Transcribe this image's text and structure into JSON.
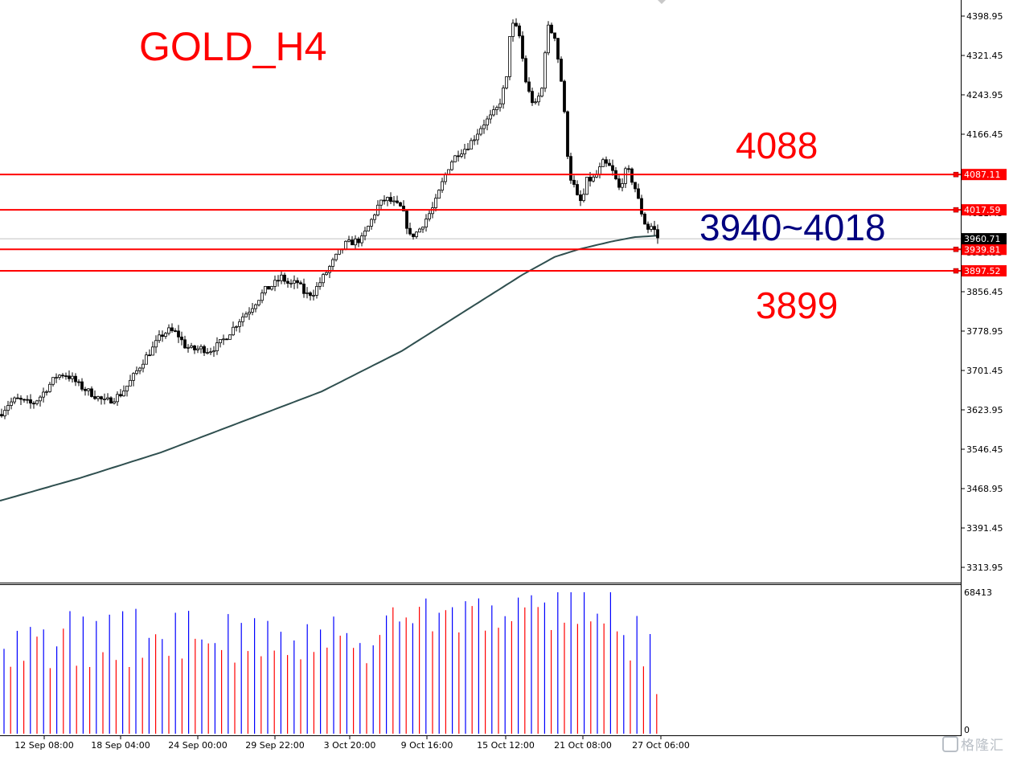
{
  "chart_data": {
    "type": "candlestick",
    "title": "GOLD_H4",
    "price_axis": {
      "ticks": [
        "4398.95",
        "4321.45",
        "4243.95",
        "4166.45",
        "4088.95",
        "4011.45",
        "3933.95",
        "3856.45",
        "3778.95",
        "3701.45",
        "3623.95",
        "3546.45",
        "3468.95",
        "3391.45",
        "3313.95"
      ],
      "range": [
        3300,
        4420
      ]
    },
    "time_axis": {
      "ticks": [
        "12 Sep 08:00",
        "18 Sep 04:00",
        "24 Sep 00:00",
        "29 Sep 22:00",
        "3 Oct 20:00",
        "9 Oct 16:00",
        "15 Oct 12:00",
        "21 Oct 08:00",
        "27 Oct 06:00"
      ]
    },
    "horizontal_lines": [
      {
        "price": 4087.11,
        "label": "4087.11",
        "color": "#ff0000"
      },
      {
        "price": 4017.59,
        "label": "4017.59",
        "color": "#ff0000"
      },
      {
        "price": 3939.81,
        "label": "3939.81",
        "color": "#ff0000"
      },
      {
        "price": 3897.52,
        "label": "3897.52",
        "color": "#ff0000"
      }
    ],
    "current_price": {
      "price": 3960.71,
      "label": "3960.71"
    },
    "annotations": [
      {
        "text": "4088",
        "color": "#ff0000"
      },
      {
        "text": "3940~4018",
        "color": "#00007f"
      },
      {
        "text": "3899",
        "color": "#ff0000"
      }
    ],
    "close_path": [
      [
        0,
        3615
      ],
      [
        10,
        3635
      ],
      [
        20,
        3645
      ],
      [
        30,
        3640
      ],
      [
        40,
        3635
      ],
      [
        50,
        3650
      ],
      [
        60,
        3670
      ],
      [
        70,
        3690
      ],
      [
        80,
        3695
      ],
      [
        90,
        3685
      ],
      [
        100,
        3670
      ],
      [
        110,
        3660
      ],
      [
        120,
        3650
      ],
      [
        130,
        3640
      ],
      [
        140,
        3645
      ],
      [
        150,
        3655
      ],
      [
        160,
        3675
      ],
      [
        170,
        3700
      ],
      [
        180,
        3725
      ],
      [
        190,
        3745
      ],
      [
        200,
        3770
      ],
      [
        210,
        3780
      ],
      [
        220,
        3775
      ],
      [
        230,
        3750
      ],
      [
        240,
        3742
      ],
      [
        250,
        3745
      ],
      [
        260,
        3740
      ],
      [
        270,
        3750
      ],
      [
        280,
        3765
      ],
      [
        290,
        3785
      ],
      [
        300,
        3805
      ],
      [
        310,
        3820
      ],
      [
        320,
        3840
      ],
      [
        330,
        3860
      ],
      [
        340,
        3870
      ],
      [
        350,
        3885
      ],
      [
        360,
        3870
      ],
      [
        370,
        3875
      ],
      [
        380,
        3850
      ],
      [
        390,
        3855
      ],
      [
        400,
        3880
      ],
      [
        410,
        3905
      ],
      [
        420,
        3930
      ],
      [
        430,
        3950
      ],
      [
        440,
        3955
      ],
      [
        450,
        3960
      ],
      [
        460,
        3990
      ],
      [
        470,
        4025
      ],
      [
        480,
        4040
      ],
      [
        490,
        4030
      ],
      [
        500,
        4020
      ],
      [
        510,
        3965
      ],
      [
        520,
        3975
      ],
      [
        530,
        4000
      ],
      [
        540,
        4025
      ],
      [
        550,
        4070
      ],
      [
        560,
        4110
      ],
      [
        570,
        4130
      ],
      [
        580,
        4140
      ],
      [
        590,
        4160
      ],
      [
        600,
        4185
      ],
      [
        610,
        4200
      ],
      [
        620,
        4220
      ],
      [
        630,
        4275
      ],
      [
        635,
        4385
      ],
      [
        645,
        4370
      ],
      [
        655,
        4260
      ],
      [
        665,
        4220
      ],
      [
        675,
        4260
      ],
      [
        680,
        4380
      ],
      [
        690,
        4360
      ],
      [
        700,
        4250
      ],
      [
        705,
        4140
      ],
      [
        710,
        4080
      ],
      [
        715,
        4060
      ],
      [
        720,
        4030
      ],
      [
        725,
        4040
      ],
      [
        730,
        4075
      ],
      [
        740,
        4080
      ],
      [
        750,
        4110
      ],
      [
        760,
        4100
      ],
      [
        770,
        4060
      ],
      [
        780,
        4100
      ],
      [
        790,
        4060
      ],
      [
        800,
        4000
      ],
      [
        805,
        3980
      ],
      [
        810,
        3985
      ],
      [
        815,
        3975
      ],
      [
        820,
        3955
      ]
    ],
    "ma_path": [
      [
        0,
        3445
      ],
      [
        100,
        3490
      ],
      [
        200,
        3540
      ],
      [
        300,
        3600
      ],
      [
        400,
        3660
      ],
      [
        500,
        3740
      ],
      [
        560,
        3800
      ],
      [
        600,
        3840
      ],
      [
        650,
        3890
      ],
      [
        690,
        3925
      ],
      [
        720,
        3940
      ],
      [
        760,
        3955
      ],
      [
        790,
        3964
      ],
      [
        820,
        3967
      ]
    ],
    "volume": {
      "axis_max_label": "68413",
      "axis_min_label": "0",
      "max": 68413,
      "series_colors": {
        "up": "#0000ff",
        "down": "#ff0000"
      }
    }
  }
}
